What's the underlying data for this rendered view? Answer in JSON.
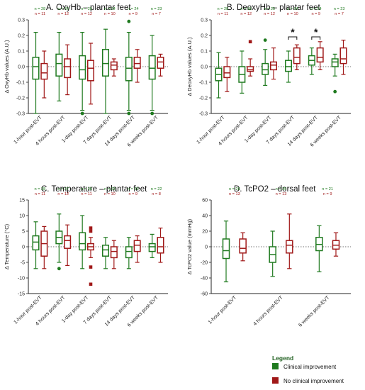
{
  "colors": {
    "clinical": "#1f7a1f",
    "no_clinical": "#a01818"
  },
  "legend": {
    "title": "Legend",
    "items": [
      {
        "label": "Clinical improvement",
        "color": "#1f7a1f"
      },
      {
        "label": "No clinical improvement",
        "color": "#a01818"
      }
    ]
  },
  "chart_data": [
    {
      "type": "box",
      "title": "A. OxyHb – plantar feet",
      "ylabel": "Δ OxyHb values (A.U.)",
      "ylim": [
        -0.3,
        0.3
      ],
      "yticks": [
        -0.3,
        -0.2,
        -0.1,
        0.0,
        0.1,
        0.2,
        0.3
      ],
      "ytick_labels": [
        "-0.3",
        "-0.2",
        "-0.1",
        "0.0",
        "0.1",
        "0.2",
        "0.3"
      ],
      "categories": [
        "1-hour post-EVT",
        "4 hours post-EVT",
        "1-day post-EVT",
        "7 days post-EVT",
        "14 days post-EVT",
        "6 weeks post-EVT"
      ],
      "n_clinical": [
        "n = 28",
        "n = 26",
        "n = 25",
        "n = 24",
        "n = 24",
        "n = 23"
      ],
      "n_no_clinical": [
        "n = 11",
        "n = 12",
        "n = 12",
        "n = 10",
        "n = 9",
        "n = 7"
      ],
      "zero_line": true,
      "series": [
        {
          "name": "Clinical improvement",
          "boxes": [
            {
              "min": -0.3,
              "q1": -0.08,
              "median": 0.0,
              "q3": 0.06,
              "max": 0.22
            },
            {
              "min": -0.22,
              "q1": -0.06,
              "median": 0.02,
              "q3": 0.08,
              "max": 0.22
            },
            {
              "min": -0.28,
              "q1": -0.08,
              "median": -0.02,
              "q3": 0.07,
              "max": 0.22,
              "outliers": [
                -0.3
              ]
            },
            {
              "min": -0.3,
              "q1": -0.06,
              "median": 0.02,
              "q3": 0.11,
              "max": 0.24
            },
            {
              "min": -0.28,
              "q1": -0.09,
              "median": -0.01,
              "q3": 0.06,
              "max": 0.22,
              "outliers": [
                0.29,
                -0.3
              ]
            },
            {
              "min": -0.28,
              "q1": -0.08,
              "median": -0.01,
              "q3": 0.07,
              "max": 0.2,
              "outliers": [
                -0.3
              ]
            }
          ]
        },
        {
          "name": "No clinical improvement",
          "boxes": [
            {
              "min": -0.2,
              "q1": -0.08,
              "median": -0.04,
              "q3": 0.02,
              "max": 0.1
            },
            {
              "min": -0.18,
              "q1": -0.07,
              "median": 0.0,
              "q3": 0.05,
              "max": 0.14
            },
            {
              "min": -0.24,
              "q1": -0.09,
              "median": -0.01,
              "q3": 0.04,
              "max": 0.15
            },
            {
              "min": -0.06,
              "q1": -0.02,
              "median": 0.01,
              "q3": 0.03,
              "max": 0.05
            },
            {
              "min": -0.1,
              "q1": -0.01,
              "median": 0.02,
              "q3": 0.06,
              "max": 0.11
            },
            {
              "min": -0.06,
              "q1": -0.01,
              "median": 0.03,
              "q3": 0.06,
              "max": 0.08
            }
          ]
        }
      ]
    },
    {
      "type": "box",
      "title": "B. DeoxyHb – plantar feet",
      "ylabel": "Δ DeoxyHb values (A.U.)",
      "ylim": [
        -0.3,
        0.3
      ],
      "yticks": [
        -0.3,
        -0.2,
        -0.1,
        0.0,
        0.1,
        0.2,
        0.3
      ],
      "ytick_labels": [
        "-0.3",
        "-0.2",
        "-0.1",
        "0.0",
        "0.1",
        "0.2",
        "0.3"
      ],
      "categories": [
        "1-hour post-EVT",
        "4 hours post-EVT",
        "1-day post-EVT",
        "7 days post-EVT",
        "14 days post-EVT",
        "6 weeks post-EVT"
      ],
      "n_clinical": [
        "n = 28",
        "n = 26",
        "n = 25",
        "n = 24",
        "n = 24",
        "n = 23"
      ],
      "n_no_clinical": [
        "n = 11",
        "n = 12",
        "n = 12",
        "n = 10",
        "n = 9",
        "n = 7"
      ],
      "zero_line": true,
      "significance": [
        {
          "category_index": 3,
          "label": "*"
        },
        {
          "category_index": 4,
          "label": "*"
        }
      ],
      "series": [
        {
          "name": "Clinical improvement",
          "boxes": [
            {
              "min": -0.2,
              "q1": -0.09,
              "median": -0.05,
              "q3": -0.01,
              "max": 0.09
            },
            {
              "min": -0.17,
              "q1": -0.1,
              "median": -0.05,
              "q3": 0.0,
              "max": 0.1
            },
            {
              "min": -0.12,
              "q1": -0.05,
              "median": -0.02,
              "q3": 0.02,
              "max": 0.11,
              "outliers": [
                0.17
              ]
            },
            {
              "min": -0.1,
              "q1": -0.03,
              "median": 0.0,
              "q3": 0.04,
              "max": 0.1
            },
            {
              "min": -0.05,
              "q1": 0.01,
              "median": 0.04,
              "q3": 0.07,
              "max": 0.12
            },
            {
              "min": -0.06,
              "q1": 0.0,
              "median": 0.03,
              "q3": 0.05,
              "max": 0.08,
              "outliers": [
                -0.16
              ]
            }
          ]
        },
        {
          "name": "No clinical improvement",
          "boxes": [
            {
              "min": -0.16,
              "q1": -0.07,
              "median": -0.04,
              "q3": 0.0,
              "max": 0.06
            },
            {
              "min": -0.06,
              "q1": -0.03,
              "median": -0.02,
              "q3": 0.0,
              "max": 0.05,
              "outliers": [
                0.16
              ]
            },
            {
              "min": -0.08,
              "q1": -0.02,
              "median": 0.01,
              "q3": 0.03,
              "max": 0.12
            },
            {
              "min": -0.02,
              "q1": 0.02,
              "median": 0.06,
              "q3": 0.12,
              "max": 0.14
            },
            {
              "min": -0.02,
              "q1": 0.03,
              "median": 0.06,
              "q3": 0.12,
              "max": 0.16
            },
            {
              "min": -0.05,
              "q1": 0.02,
              "median": 0.05,
              "q3": 0.12,
              "max": 0.17
            }
          ]
        }
      ]
    },
    {
      "type": "box",
      "title": "C. Temperature – plantar feet",
      "ylabel": "Δ Temperature (°C)",
      "ylim": [
        -15,
        15
      ],
      "yticks": [
        -15,
        -10,
        -5,
        0,
        5,
        10,
        15
      ],
      "ytick_labels": [
        "-15",
        "-10",
        "-5",
        "0",
        "5",
        "10",
        "15"
      ],
      "categories": [
        "1-hour post-EVT",
        "4 hours post-EVT",
        "1-day post-EVT",
        "7 days post-EVT",
        "14 days post-EVT",
        "6 weeks post-EVT"
      ],
      "n_clinical": [
        "n = 28",
        "n = 27",
        "n = 25",
        "n = 23",
        "n = 20",
        "n = 22"
      ],
      "n_no_clinical": [
        "n = 11",
        "n = 12",
        "n = 11",
        "n = 10",
        "n = 9",
        "n = 8"
      ],
      "zero_line": true,
      "series": [
        {
          "name": "Clinical improvement",
          "boxes": [
            {
              "min": -7,
              "q1": -1,
              "median": 1.5,
              "q3": 3.5,
              "max": 8
            },
            {
              "min": -5,
              "q1": 1,
              "median": 3,
              "q3": 5,
              "max": 10.5,
              "outliers": [
                -7
              ]
            },
            {
              "min": -7,
              "q1": -1,
              "median": 1,
              "q3": 4.5,
              "max": 10
            },
            {
              "min": -7,
              "q1": -3,
              "median": -1,
              "q3": 0.5,
              "max": 3
            },
            {
              "min": -7,
              "q1": -3.5,
              "median": -1.5,
              "q3": 0,
              "max": 3
            },
            {
              "min": -3.5,
              "q1": -1.5,
              "median": 0,
              "q3": 1,
              "max": 4
            }
          ]
        },
        {
          "name": "No clinical improvement",
          "boxes": [
            {
              "min": -7,
              "q1": -3,
              "median": 1,
              "q3": 5,
              "max": 6.5
            },
            {
              "min": -6,
              "q1": -0.5,
              "median": 2,
              "q3": 3.5,
              "max": 7
            },
            {
              "min": -3.5,
              "q1": -1,
              "median": 0,
              "q3": 1,
              "max": 3,
              "outliers": [
                6,
                5,
                -6.5,
                -12
              ]
            },
            {
              "min": -7,
              "q1": -3.5,
              "median": -1.5,
              "q3": 0,
              "max": 2
            },
            {
              "min": -5,
              "q1": -1.5,
              "median": 0.5,
              "q3": 2,
              "max": 3.5
            },
            {
              "min": -5,
              "q1": -2,
              "median": 0,
              "q3": 3,
              "max": 6
            }
          ]
        }
      ]
    },
    {
      "type": "box",
      "title": "D. TcPO2 – dorsal feet",
      "ylabel": "Δ TcPO2 value (mmHg)",
      "ylim": [
        -60,
        60
      ],
      "yticks": [
        -60,
        -40,
        -20,
        0,
        20,
        40,
        60
      ],
      "ytick_labels": [
        "-60",
        "-40",
        "-20",
        "0",
        "20",
        "40",
        "60"
      ],
      "categories": [
        "1-hour post-EVT",
        "4 hours post-EVT",
        "6 weeks post-EVT"
      ],
      "n_clinical": [
        "n = 26",
        "n = 25",
        "n = 21"
      ],
      "n_no_clinical": [
        "n = 13",
        "n = 13",
        "n = 9"
      ],
      "zero_line": true,
      "series": [
        {
          "name": "Clinical improvement",
          "boxes": [
            {
              "min": -45,
              "q1": -15,
              "median": -5,
              "q3": 10,
              "max": 33
            },
            {
              "min": -38,
              "q1": -20,
              "median": -10,
              "q3": 0,
              "max": 20
            },
            {
              "min": -32,
              "q1": -5,
              "median": 3,
              "q3": 12,
              "max": 27
            }
          ]
        },
        {
          "name": "No clinical improvement",
          "boxes": [
            {
              "min": -18,
              "q1": -8,
              "median": -2,
              "q3": 10,
              "max": 18
            },
            {
              "min": -28,
              "q1": -8,
              "median": 2,
              "q3": 8,
              "max": 42
            },
            {
              "min": -12,
              "q1": -3,
              "median": 2,
              "q3": 8,
              "max": 18
            }
          ]
        }
      ]
    }
  ]
}
